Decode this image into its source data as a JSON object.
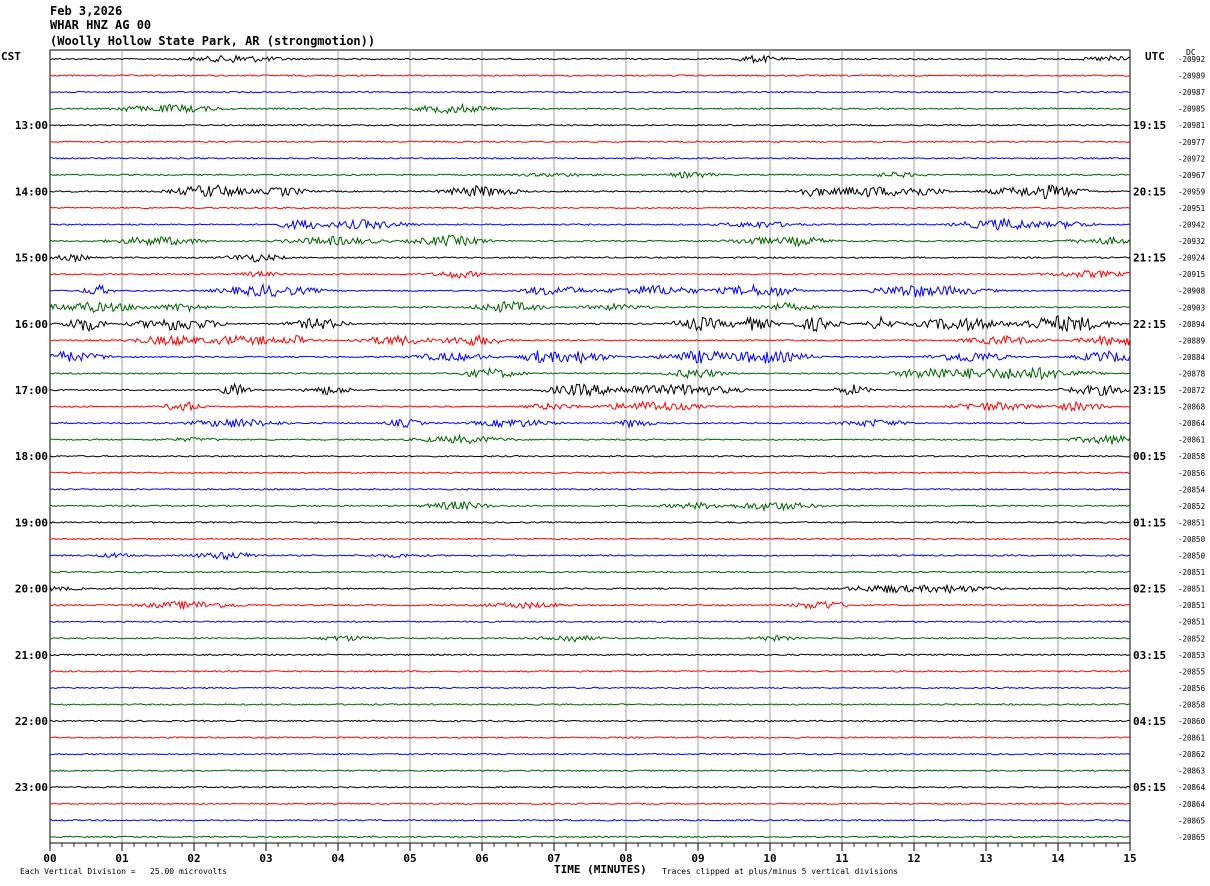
{
  "header": {
    "date": "Feb 3,2026",
    "station": "WHAR HNZ AG 00",
    "location": "(Woolly Hollow State Park, AR (strongmotion))"
  },
  "left_tz": "CST",
  "right_tz": "UTC",
  "dc_label": "DC",
  "footer": {
    "scale_note": "Each Vertical Division =   25.00 microvolts",
    "clip_note": "Traces clipped at plus/minus 5 vertical divisions",
    "xlabel": "TIME (MINUTES)"
  },
  "chart_data": {
    "type": "line",
    "title": "WHAR HNZ AG 00",
    "xlabel": "TIME (MINUTES)",
    "xlim": [
      0,
      15
    ],
    "x_ticks": [
      "00",
      "01",
      "02",
      "03",
      "04",
      "05",
      "06",
      "07",
      "08",
      "09",
      "10",
      "11",
      "12",
      "13",
      "14",
      "15"
    ],
    "left_hour_labels": [
      "13:00",
      "14:00",
      "15:00",
      "16:00",
      "17:00",
      "18:00",
      "19:00",
      "20:00",
      "21:00",
      "22:00",
      "23:00"
    ],
    "right_hour_labels": [
      "19:15",
      "20:15",
      "21:15",
      "22:15",
      "23:15",
      "00:15",
      "01:15",
      "02:15",
      "03:15",
      "04:15",
      "05:15"
    ],
    "trace_colors": [
      "#000000",
      "#ff0000",
      "#0000ff",
      "#006400"
    ],
    "dc_offsets": [
      "-20992",
      "-20989",
      "-20987",
      "-20985",
      "-20981",
      "-20977",
      "-20972",
      "-20967",
      "-20959",
      "-20951",
      "-20942",
      "-20932",
      "-20924",
      "-20915",
      "-20908",
      "-20903",
      "-20894",
      "-20889",
      "-20884",
      "-20878",
      "-20872",
      "-20868",
      "-20864",
      "-20861",
      "-20858",
      "-20856",
      "-20854",
      "-20852",
      "-20851",
      "-20850",
      "-20850",
      "-20851",
      "-20851",
      "-20851",
      "-20851",
      "-20852",
      "-20853",
      "-20855",
      "-20856",
      "-20858",
      "-20860",
      "-20861",
      "-20862",
      "-20863",
      "-20864",
      "-20864",
      "-20865",
      "-20865"
    ],
    "trace_count": 48,
    "activity": [
      1,
      0,
      0,
      1,
      0,
      0,
      0,
      1,
      3,
      0,
      2,
      2,
      1,
      1,
      3,
      2,
      4,
      3,
      3,
      3,
      3,
      2,
      2,
      1,
      0,
      0,
      0,
      1,
      0,
      0,
      1,
      0,
      1,
      1,
      0,
      1,
      0,
      0,
      0,
      0,
      0,
      0,
      0,
      0,
      0,
      0,
      0,
      0
    ],
    "grid": true
  }
}
